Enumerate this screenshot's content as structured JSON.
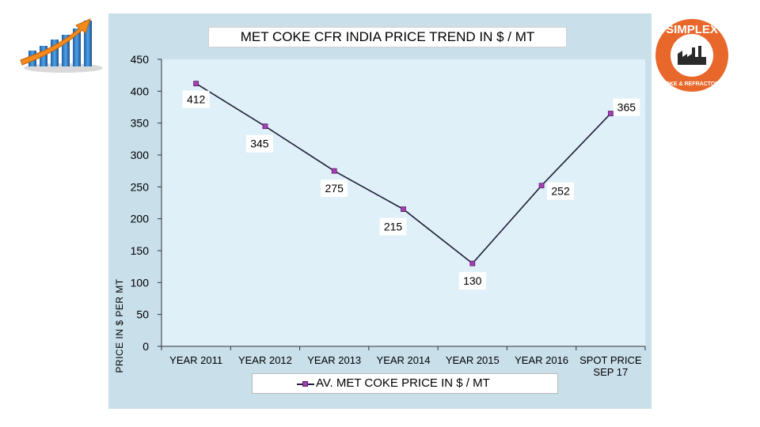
{
  "chart_data": {
    "type": "line",
    "title": "MET COKE CFR INDIA PRICE TREND IN $ / MT",
    "xlabel": "",
    "ylabel": "PRICE IN $ PER MT",
    "categories": [
      "YEAR 2011",
      "YEAR 2012",
      "YEAR 2013",
      "YEAR 2014",
      "YEAR 2015",
      "YEAR 2016",
      "SPOT PRICE SEP 17"
    ],
    "series": [
      {
        "name": "AV. MET COKE PRICE IN $ / MT",
        "values": [
          412,
          345,
          275,
          215,
          130,
          252,
          365
        ],
        "data_labels": [
          "412",
          "345",
          "275",
          "215",
          "130",
          "252",
          "365"
        ],
        "color": "#1f1f3a",
        "marker_color": "#a33fb5"
      }
    ],
    "ylim": [
      0,
      450
    ],
    "yticks": [
      "0",
      "50",
      "100",
      "150",
      "200",
      "250",
      "300",
      "350",
      "400",
      "450"
    ],
    "grid": false,
    "legend_position": "bottom",
    "plot_background": "#dff0f8",
    "panel_background": "#c9dfea"
  },
  "logos": {
    "left": "growth-arrow-icon",
    "right": "simplex-coke-and-refractory-logo",
    "right_text": "SIMPLEX COKE & REFRACTORY"
  },
  "colors": {
    "logo_orange": "#e8672a",
    "bar_blue": "#3a8fd6",
    "arrow_orange": "#f28a1c"
  }
}
